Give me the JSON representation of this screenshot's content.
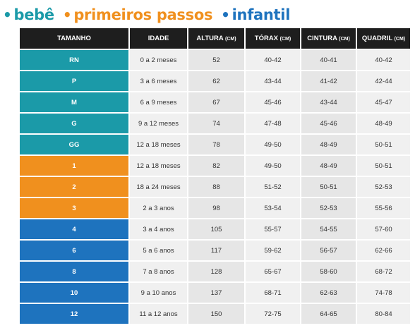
{
  "legend": [
    {
      "label": "bebê",
      "color": "#1b9aa8"
    },
    {
      "label": "primeiros passos",
      "color": "#f0901e"
    },
    {
      "label": "infantil",
      "color": "#1e73be"
    }
  ],
  "table": {
    "headers": [
      {
        "text": "TAMANHO",
        "unit": ""
      },
      {
        "text": "IDADE",
        "unit": ""
      },
      {
        "text": "ALTURA",
        "unit": "(CM)"
      },
      {
        "text": "TÓRAX",
        "unit": "(CM)"
      },
      {
        "text": "CINTURA",
        "unit": "(CM)"
      },
      {
        "text": "QUADRIL",
        "unit": "(CM)"
      }
    ],
    "rows": [
      {
        "group": 0,
        "cells": [
          "RN",
          "0 a 2 meses",
          "52",
          "40-42",
          "40-41",
          "40-42"
        ]
      },
      {
        "group": 0,
        "cells": [
          "P",
          "3 a 6 meses",
          "62",
          "43-44",
          "41-42",
          "42-44"
        ]
      },
      {
        "group": 0,
        "cells": [
          "M",
          "6 a 9 meses",
          "67",
          "45-46",
          "43-44",
          "45-47"
        ]
      },
      {
        "group": 0,
        "cells": [
          "G",
          "9 a 12 meses",
          "74",
          "47-48",
          "45-46",
          "48-49"
        ]
      },
      {
        "group": 0,
        "cells": [
          "GG",
          "12 a 18 meses",
          "78",
          "49-50",
          "48-49",
          "50-51"
        ]
      },
      {
        "group": 1,
        "cells": [
          "1",
          "12 a 18 meses",
          "82",
          "49-50",
          "48-49",
          "50-51"
        ]
      },
      {
        "group": 1,
        "cells": [
          "2",
          "18 a 24 meses",
          "88",
          "51-52",
          "50-51",
          "52-53"
        ]
      },
      {
        "group": 1,
        "cells": [
          "3",
          "2 a 3 anos",
          "98",
          "53-54",
          "52-53",
          "55-56"
        ]
      },
      {
        "group": 2,
        "cells": [
          "4",
          "3 a 4 anos",
          "105",
          "55-57",
          "54-55",
          "57-60"
        ]
      },
      {
        "group": 2,
        "cells": [
          "6",
          "5 a 6 anos",
          "117",
          "59-62",
          "56-57",
          "62-66"
        ]
      },
      {
        "group": 2,
        "cells": [
          "8",
          "7 a 8 anos",
          "128",
          "65-67",
          "58-60",
          "68-72"
        ]
      },
      {
        "group": 2,
        "cells": [
          "10",
          "9 a 10 anos",
          "137",
          "68-71",
          "62-63",
          "74-78"
        ]
      },
      {
        "group": 2,
        "cells": [
          "12",
          "11 a 12 anos",
          "150",
          "72-75",
          "64-65",
          "80-84"
        ]
      }
    ]
  }
}
